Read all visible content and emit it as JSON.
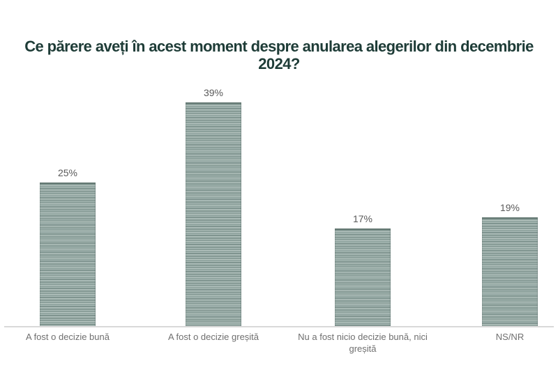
{
  "chart_data": {
    "type": "bar",
    "title": "Ce părere aveți în acest moment despre anularea alegerilor din decembrie 2024?",
    "categories": [
      "A fost o decizie bună",
      "A fost o decizie greșită",
      "Nu a fost nicio decizie bună, nici greșită",
      "NS/NR"
    ],
    "values": [
      25,
      39,
      17,
      19
    ],
    "value_labels": [
      "25%",
      "39%",
      "17%",
      "19%"
    ],
    "xlabel": "",
    "ylabel": "",
    "ylim": [
      0,
      45
    ],
    "grid": false,
    "legend": "none",
    "colors": {
      "title": "#1e3c37",
      "bar_base": "#92a6a1",
      "bar_stripe_light": "#b9c7c3",
      "bar_stripe_dark": "#7b908b",
      "bar_top_edge": "#60756f",
      "value_label": "#595959",
      "category_label": "#6f6f6f",
      "axis_line": "#d9d9d9",
      "background": "#ffffff"
    },
    "bar_texture": "horizontal-stripes"
  }
}
